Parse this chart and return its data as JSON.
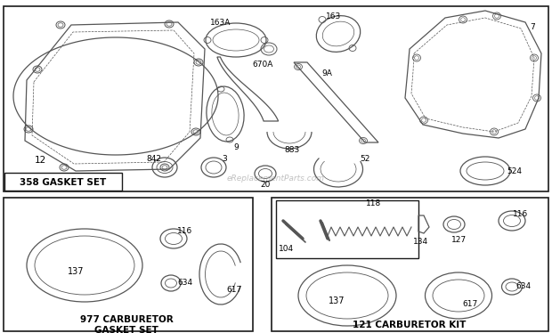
{
  "bg_color": "#ffffff",
  "border_color": "#1a1a1a",
  "part_color": "#555555",
  "text_color": "#000000",
  "section1_label": "358 GASKET SET",
  "section2_label": "977 CARBURETOR\nGASKET SET",
  "section3_label": "121 CARBURETOR KIT",
  "watermark": "eReplacementParts.com"
}
